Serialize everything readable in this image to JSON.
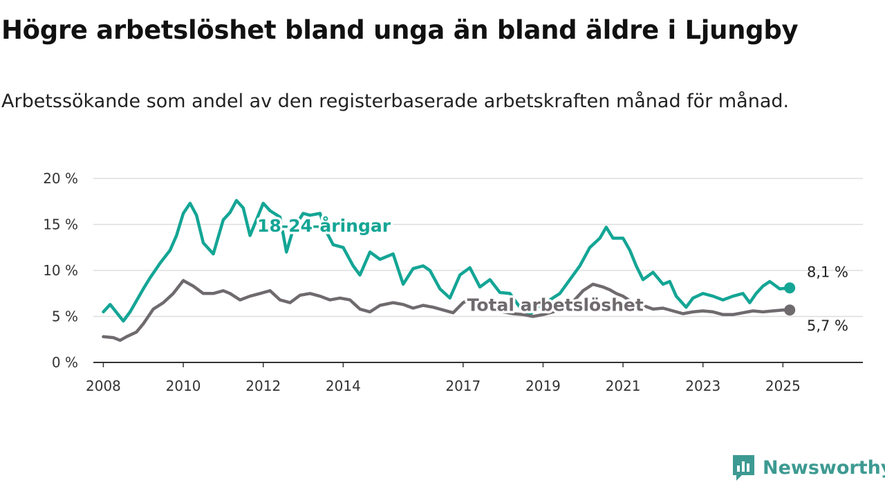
{
  "title": "Högre arbetslöshet bland unga än bland äldre i Ljungby",
  "subtitle": "Arbetssökande som andel av den registerbaserade arbetskraften månad för månad.",
  "logo": {
    "text": "Newsworthy",
    "icon": "newsworthy-logo-icon"
  },
  "colors": {
    "youth": "#14a595",
    "total": "#6f6a6e",
    "grid": "#dddddd",
    "axis": "#333333"
  },
  "chart_data": {
    "type": "line",
    "x_ticks": [
      "2008",
      "2010",
      "2012",
      "2014",
      "2017",
      "2019",
      "2021",
      "2023",
      "2025"
    ],
    "y_ticks": [
      "0 %",
      "5 %",
      "10 %",
      "15 %",
      "20 %"
    ],
    "ylim": [
      0,
      20
    ],
    "xlim": [
      2007.75,
      2027
    ],
    "grid": "horizontal",
    "series": [
      {
        "name": "18-24-åringar",
        "color": "#14a595",
        "end_label": "8,1 %",
        "x": [
          2008.0,
          2008.17,
          2008.5,
          2008.67,
          2009.0,
          2009.17,
          2009.42,
          2009.67,
          2009.83,
          2010.0,
          2010.17,
          2010.33,
          2010.5,
          2010.75,
          2011.0,
          2011.17,
          2011.33,
          2011.5,
          2011.67,
          2011.83,
          2012.0,
          2012.17,
          2012.42,
          2012.58,
          2012.75,
          2013.0,
          2013.17,
          2013.42,
          2013.58,
          2013.75,
          2014.0,
          2014.25,
          2014.42,
          2014.67,
          2014.92,
          2015.25,
          2015.5,
          2015.75,
          2016.0,
          2016.17,
          2016.42,
          2016.67,
          2016.92,
          2017.17,
          2017.42,
          2017.67,
          2017.92,
          2018.17,
          2018.42,
          2018.67,
          2018.92,
          2019.17,
          2019.42,
          2019.67,
          2019.92,
          2020.17,
          2020.42,
          2020.58,
          2020.75,
          2021.0,
          2021.17,
          2021.33,
          2021.5,
          2021.75,
          2022.0,
          2022.17,
          2022.33,
          2022.58,
          2022.75,
          2023.0,
          2023.25,
          2023.5,
          2023.75,
          2024.0,
          2024.17,
          2024.33,
          2024.5,
          2024.67,
          2024.92,
          2025.17
        ],
        "y": [
          5.5,
          6.3,
          4.5,
          5.5,
          8.0,
          9.2,
          10.8,
          12.2,
          13.8,
          16.2,
          17.3,
          16.0,
          13.0,
          11.8,
          15.5,
          16.3,
          17.6,
          16.8,
          13.8,
          15.5,
          17.3,
          16.5,
          15.8,
          12.0,
          14.5,
          16.2,
          16.0,
          16.2,
          14.2,
          12.8,
          12.5,
          10.5,
          9.5,
          12.0,
          11.2,
          11.8,
          8.5,
          10.2,
          10.5,
          10.0,
          8.0,
          7.0,
          9.5,
          10.3,
          8.2,
          9.0,
          7.6,
          7.5,
          6.0,
          5.2,
          6.2,
          6.8,
          7.5,
          9.0,
          10.5,
          12.5,
          13.5,
          14.7,
          13.5,
          13.5,
          12.2,
          10.5,
          9.0,
          9.8,
          8.5,
          8.8,
          7.2,
          6.0,
          7.0,
          7.5,
          7.2,
          6.8,
          7.2,
          7.5,
          6.5,
          7.5,
          8.3,
          8.8,
          8.0,
          8.1
        ]
      },
      {
        "name": "Total arbetslöshet",
        "color": "#6f6a6e",
        "end_label": "5,7 %",
        "x": [
          2008.0,
          2008.25,
          2008.42,
          2008.58,
          2008.83,
          2009.0,
          2009.25,
          2009.5,
          2009.75,
          2010.0,
          2010.25,
          2010.5,
          2010.75,
          2011.0,
          2011.17,
          2011.42,
          2011.67,
          2011.92,
          2012.17,
          2012.42,
          2012.67,
          2012.92,
          2013.17,
          2013.42,
          2013.67,
          2013.92,
          2014.17,
          2014.42,
          2014.67,
          2014.92,
          2015.25,
          2015.5,
          2015.75,
          2016.0,
          2016.25,
          2016.5,
          2016.75,
          2017.0,
          2017.25,
          2017.5,
          2017.75,
          2018.0,
          2018.25,
          2018.5,
          2018.75,
          2019.0,
          2019.25,
          2019.5,
          2019.75,
          2020.0,
          2020.25,
          2020.5,
          2020.67,
          2020.83,
          2021.0,
          2021.25,
          2021.5,
          2021.75,
          2022.0,
          2022.25,
          2022.5,
          2022.75,
          2023.0,
          2023.25,
          2023.5,
          2023.75,
          2024.0,
          2024.25,
          2024.5,
          2024.75,
          2025.0,
          2025.17
        ],
        "y": [
          2.8,
          2.7,
          2.4,
          2.8,
          3.3,
          4.2,
          5.8,
          6.5,
          7.5,
          8.9,
          8.3,
          7.5,
          7.5,
          7.8,
          7.5,
          6.8,
          7.2,
          7.5,
          7.8,
          6.8,
          6.5,
          7.3,
          7.5,
          7.2,
          6.8,
          7.0,
          6.8,
          5.8,
          5.5,
          6.2,
          6.5,
          6.3,
          5.9,
          6.2,
          6.0,
          5.7,
          5.4,
          6.5,
          7.0,
          6.3,
          5.9,
          5.5,
          5.3,
          5.2,
          5.0,
          5.2,
          5.5,
          6.0,
          6.6,
          7.8,
          8.5,
          8.2,
          7.9,
          7.5,
          7.2,
          6.5,
          6.2,
          5.8,
          5.9,
          5.6,
          5.3,
          5.5,
          5.6,
          5.5,
          5.2,
          5.2,
          5.4,
          5.6,
          5.5,
          5.6,
          5.7,
          5.7
        ]
      }
    ]
  }
}
